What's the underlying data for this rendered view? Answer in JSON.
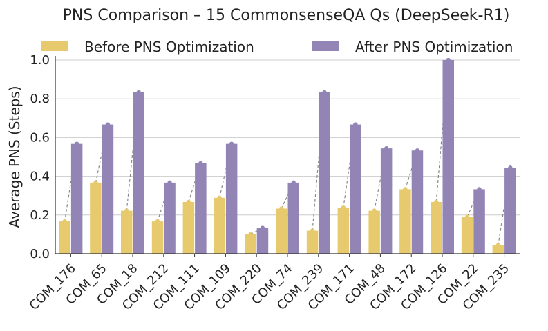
{
  "chart_data": {
    "type": "bar",
    "title": "PNS Comparison – 15 CommonsenseQA Qs (DeepSeek-R1)",
    "xlabel": "",
    "ylabel": "Average PNS (Steps)",
    "ylim": [
      0,
      1.0
    ],
    "yticks": [
      "0.0",
      "0.2",
      "0.4",
      "0.6",
      "0.8",
      "1.0"
    ],
    "grid": "horizontal",
    "legend_position": "top",
    "categories": [
      "COM_176",
      "COM_65",
      "COM_18",
      "COM_212",
      "COM_111",
      "COM_109",
      "COM_220",
      "COM_74",
      "COM_239",
      "COM_171",
      "COM_48",
      "COM_172",
      "COM_126",
      "COM_22",
      "COM_235"
    ],
    "series": [
      {
        "name": "Before PNS Optimization",
        "color": "#E8CA6E",
        "values": [
          0.167,
          0.367,
          0.222,
          0.167,
          0.267,
          0.289,
          0.1,
          0.233,
          0.119,
          0.238,
          0.222,
          0.333,
          0.267,
          0.19,
          0.044
        ]
      },
      {
        "name": "After PNS Optimization",
        "color": "#9384B6",
        "values": [
          0.567,
          0.667,
          0.833,
          0.367,
          0.467,
          0.567,
          0.133,
          0.367,
          0.833,
          0.667,
          0.544,
          0.533,
          1.0,
          0.333,
          0.444
        ]
      }
    ],
    "connector_color": "#888888"
  }
}
